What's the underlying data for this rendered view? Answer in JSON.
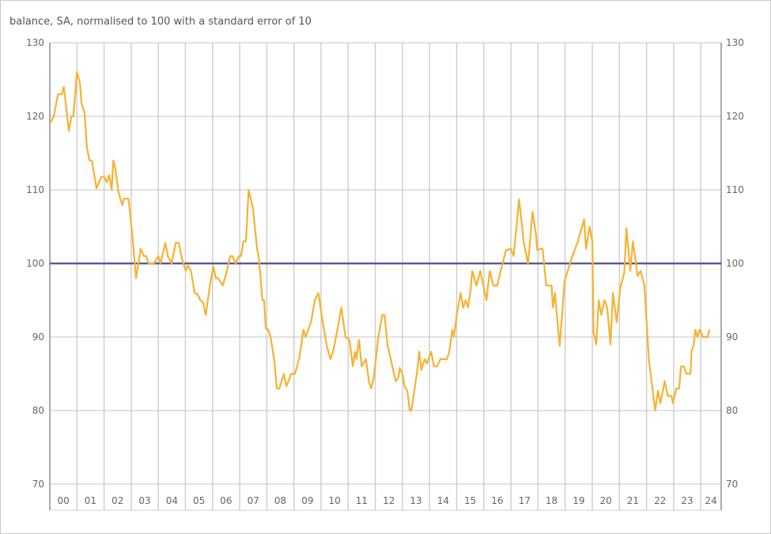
{
  "chart_data": {
    "type": "line",
    "title": "",
    "subtitle": "balance, SA, normalised to 100 with a standard error of 10",
    "xlabel": "",
    "ylabel": "",
    "ylim": [
      70,
      130
    ],
    "yticks": [
      70,
      80,
      90,
      100,
      110,
      120,
      130
    ],
    "xlim": [
      2000,
      2024.77
    ],
    "xtick_labels": [
      "00",
      "01",
      "02",
      "03",
      "04",
      "05",
      "06",
      "07",
      "08",
      "09",
      "10",
      "11",
      "12",
      "13",
      "14",
      "15",
      "16",
      "17",
      "18",
      "19",
      "20",
      "21",
      "22",
      "23",
      "24"
    ],
    "grid": true,
    "y_axis_both_sides": true,
    "reference_line": {
      "value": 100,
      "color": "#5a5a96"
    },
    "series": [
      {
        "color": "#f6b232",
        "points": [
          [
            2000.0,
            119
          ],
          [
            2000.15,
            120
          ],
          [
            2000.3,
            123
          ],
          [
            2000.44,
            123
          ],
          [
            2000.52,
            124
          ],
          [
            2000.7,
            118
          ],
          [
            2000.8,
            120
          ],
          [
            2000.87,
            120
          ],
          [
            2001.0,
            126
          ],
          [
            2001.11,
            124.5
          ],
          [
            2001.17,
            121.8
          ],
          [
            2001.28,
            120.5
          ],
          [
            2001.37,
            115.7
          ],
          [
            2001.46,
            114
          ],
          [
            2001.55,
            114
          ],
          [
            2001.72,
            110.2
          ],
          [
            2001.9,
            111.8
          ],
          [
            2002.01,
            111.8
          ],
          [
            2002.1,
            111
          ],
          [
            2002.19,
            112
          ],
          [
            2002.28,
            110
          ],
          [
            2002.34,
            114
          ],
          [
            2002.41,
            113
          ],
          [
            2002.53,
            109.7
          ],
          [
            2002.67,
            107.9
          ],
          [
            2002.73,
            108.8
          ],
          [
            2002.9,
            108.8
          ],
          [
            2003.03,
            104.3
          ],
          [
            2003.18,
            98
          ],
          [
            2003.35,
            102
          ],
          [
            2003.47,
            101
          ],
          [
            2003.55,
            101
          ],
          [
            2003.64,
            100
          ],
          [
            2003.84,
            100
          ],
          [
            2004.0,
            101
          ],
          [
            2004.08,
            100
          ],
          [
            2004.26,
            102.8
          ],
          [
            2004.35,
            101
          ],
          [
            2004.49,
            100
          ],
          [
            2004.64,
            102.8
          ],
          [
            2004.75,
            102.8
          ],
          [
            2004.87,
            100.7
          ],
          [
            2005.01,
            99
          ],
          [
            2005.1,
            99.7
          ],
          [
            2005.2,
            99
          ],
          [
            2005.34,
            96
          ],
          [
            2005.45,
            95.8
          ],
          [
            2005.55,
            95
          ],
          [
            2005.65,
            94.7
          ],
          [
            2005.75,
            93
          ],
          [
            2005.9,
            97
          ],
          [
            2006.03,
            99.6
          ],
          [
            2006.12,
            98
          ],
          [
            2006.2,
            98
          ],
          [
            2006.38,
            97
          ],
          [
            2006.53,
            99
          ],
          [
            2006.65,
            101
          ],
          [
            2006.73,
            101
          ],
          [
            2006.85,
            100
          ],
          [
            2006.97,
            101
          ],
          [
            2007.05,
            101
          ],
          [
            2007.14,
            103
          ],
          [
            2007.23,
            103
          ],
          [
            2007.33,
            110
          ],
          [
            2007.49,
            107.5
          ],
          [
            2007.64,
            102
          ],
          [
            2007.7,
            101
          ],
          [
            2007.84,
            95
          ],
          [
            2007.9,
            95
          ],
          [
            2007.96,
            91.2
          ],
          [
            2008.05,
            91
          ],
          [
            2008.14,
            90
          ],
          [
            2008.28,
            86.7
          ],
          [
            2008.37,
            83
          ],
          [
            2008.46,
            83
          ],
          [
            2008.63,
            85
          ],
          [
            2008.72,
            83.3
          ],
          [
            2008.8,
            84
          ],
          [
            2008.9,
            85
          ],
          [
            2009.04,
            85
          ],
          [
            2009.2,
            87.2
          ],
          [
            2009.35,
            91
          ],
          [
            2009.43,
            90
          ],
          [
            2009.63,
            92
          ],
          [
            2009.77,
            95
          ],
          [
            2009.9,
            96
          ],
          [
            2010.03,
            92.8
          ],
          [
            2010.21,
            88.8
          ],
          [
            2010.35,
            87
          ],
          [
            2010.44,
            88
          ],
          [
            2010.55,
            90
          ],
          [
            2010.75,
            94
          ],
          [
            2010.9,
            90
          ],
          [
            2011.05,
            89.6
          ],
          [
            2011.17,
            86
          ],
          [
            2011.25,
            88
          ],
          [
            2011.3,
            87
          ],
          [
            2011.4,
            89.6
          ],
          [
            2011.5,
            86
          ],
          [
            2011.65,
            87
          ],
          [
            2011.77,
            83.9
          ],
          [
            2011.85,
            83
          ],
          [
            2011.95,
            84.6
          ],
          [
            2012.1,
            89.7
          ],
          [
            2012.26,
            93
          ],
          [
            2012.34,
            93
          ],
          [
            2012.45,
            89
          ],
          [
            2012.66,
            85.5
          ],
          [
            2012.75,
            84
          ],
          [
            2012.85,
            84.5
          ],
          [
            2012.9,
            85.8
          ],
          [
            2013.0,
            85
          ],
          [
            2013.08,
            83.3
          ],
          [
            2013.18,
            82.7
          ],
          [
            2013.27,
            80
          ],
          [
            2013.33,
            80
          ],
          [
            2013.53,
            85
          ],
          [
            2013.62,
            88
          ],
          [
            2013.7,
            85.5
          ],
          [
            2013.82,
            87
          ],
          [
            2013.9,
            86.4
          ],
          [
            2014.06,
            88
          ],
          [
            2014.16,
            86
          ],
          [
            2014.28,
            86
          ],
          [
            2014.4,
            87
          ],
          [
            2014.64,
            87
          ],
          [
            2014.73,
            88
          ],
          [
            2014.84,
            91
          ],
          [
            2014.9,
            90
          ],
          [
            2015.0,
            93
          ],
          [
            2015.15,
            96
          ],
          [
            2015.24,
            94
          ],
          [
            2015.33,
            95
          ],
          [
            2015.42,
            94
          ],
          [
            2015.52,
            96.6
          ],
          [
            2015.57,
            99
          ],
          [
            2015.73,
            97
          ],
          [
            2015.87,
            99
          ],
          [
            2016.1,
            95
          ],
          [
            2016.22,
            99
          ],
          [
            2016.35,
            97
          ],
          [
            2016.5,
            97
          ],
          [
            2016.62,
            99
          ],
          [
            2016.82,
            101.8
          ],
          [
            2017.0,
            102
          ],
          [
            2017.1,
            101
          ],
          [
            2017.3,
            108.7
          ],
          [
            2017.48,
            102.7
          ],
          [
            2017.63,
            100
          ],
          [
            2017.8,
            107
          ],
          [
            2017.92,
            104
          ],
          [
            2017.97,
            101.8
          ],
          [
            2018.1,
            102
          ],
          [
            2018.17,
            102
          ],
          [
            2018.3,
            97
          ],
          [
            2018.5,
            97
          ],
          [
            2018.55,
            94
          ],
          [
            2018.62,
            96
          ],
          [
            2018.8,
            88.8
          ],
          [
            2018.98,
            97.6
          ],
          [
            2019.23,
            100.6
          ],
          [
            2019.47,
            103
          ],
          [
            2019.7,
            106
          ],
          [
            2019.77,
            102
          ],
          [
            2019.9,
            105
          ],
          [
            2020.0,
            103
          ],
          [
            2020.05,
            90.6
          ],
          [
            2020.15,
            89
          ],
          [
            2020.24,
            95
          ],
          [
            2020.33,
            93
          ],
          [
            2020.45,
            95
          ],
          [
            2020.55,
            94
          ],
          [
            2020.67,
            89
          ],
          [
            2020.76,
            96
          ],
          [
            2020.9,
            92
          ],
          [
            2021.03,
            96.6
          ],
          [
            2021.18,
            98.8
          ],
          [
            2021.26,
            104.8
          ],
          [
            2021.4,
            99
          ],
          [
            2021.5,
            103
          ],
          [
            2021.67,
            98.3
          ],
          [
            2021.78,
            99
          ],
          [
            2021.92,
            97
          ],
          [
            2022.09,
            86.8
          ],
          [
            2022.32,
            80
          ],
          [
            2022.42,
            82.7
          ],
          [
            2022.51,
            81
          ],
          [
            2022.67,
            84
          ],
          [
            2022.78,
            82
          ],
          [
            2022.92,
            82
          ],
          [
            2022.97,
            81
          ],
          [
            2023.1,
            83
          ],
          [
            2023.2,
            83
          ],
          [
            2023.27,
            86
          ],
          [
            2023.37,
            86
          ],
          [
            2023.47,
            85
          ],
          [
            2023.62,
            85
          ],
          [
            2023.66,
            88
          ],
          [
            2023.74,
            89
          ],
          [
            2023.8,
            91
          ],
          [
            2023.88,
            90
          ],
          [
            2023.96,
            91
          ],
          [
            2024.08,
            90
          ],
          [
            2024.25,
            90
          ],
          [
            2024.32,
            91
          ]
        ]
      }
    ]
  }
}
